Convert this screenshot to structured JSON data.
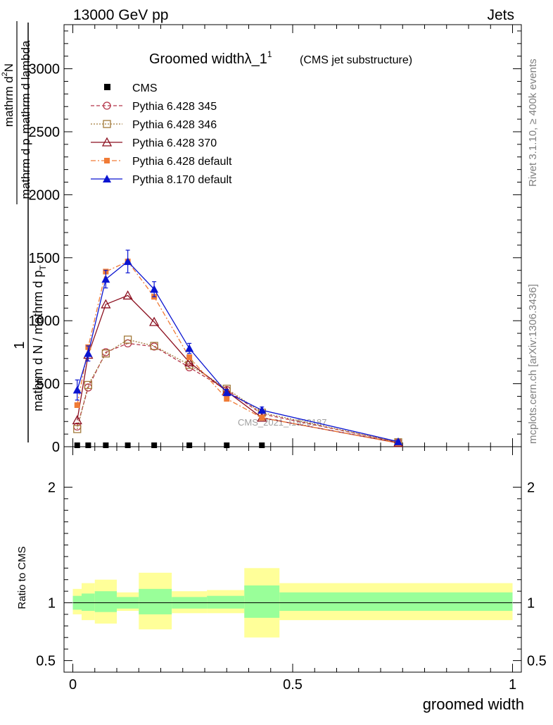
{
  "header": {
    "left": "13000 GeV pp",
    "right": "Jets"
  },
  "side_labels": {
    "rivet": "Rivet 3.1.10, ≥ 400k events",
    "mcplots": "mcplots.cern.ch [arXiv:1306.3436]"
  },
  "watermark": "CMS_2021_I1920187",
  "chart_data": {
    "type": "line",
    "title": {
      "main": "Groomed width",
      "lambda": "λ_1",
      "sup": "1",
      "sub": "(CMS jet substructure)"
    },
    "main_ylabel": {
      "numerator": "1",
      "denominator": "mathrm d N / mathrm d p",
      "denominator_sub": "T",
      "top_numerator": "mathrm d",
      "top_numerator_sup": "2",
      "top_numerator_end": "N",
      "top_denominator": "mathrm d p",
      "top_denominator_sub": "T",
      "top_denominator_end": "mathrm d lambda"
    },
    "xlabel": "groomed width",
    "ratio_ylabel": "Ratio to CMS",
    "xlim": [
      -0.02,
      1.02
    ],
    "ylim": [
      0,
      3350
    ],
    "ratio_ylim": [
      0.4,
      2.35
    ],
    "x_ticks": [
      0,
      0.5,
      1
    ],
    "x_tick_labels": [
      "0",
      "0.5",
      "1"
    ],
    "y_ticks": [
      0,
      500,
      1000,
      1500,
      2000,
      2500,
      3000
    ],
    "y_tick_labels": [
      "0",
      "500",
      "1000",
      "1500",
      "2000",
      "2500",
      "3000"
    ],
    "ratio_ticks": [
      0.5,
      1,
      2
    ],
    "ratio_tick_labels": [
      "0.5",
      "1",
      "2"
    ],
    "cms": {
      "name": "CMS",
      "x": [
        0.01,
        0.035,
        0.075,
        0.125,
        0.185,
        0.265,
        0.35,
        0.43
      ],
      "values": [
        0,
        0,
        0,
        0,
        0,
        0,
        0,
        0
      ]
    },
    "series": [
      {
        "name": "Pythia 6.428 345",
        "color": "#b5364a",
        "marker": "circle-open",
        "dash": "5,3",
        "x": [
          0.01,
          0.035,
          0.075,
          0.125,
          0.185,
          0.265,
          0.35,
          0.43,
          0.74
        ],
        "values": [
          160,
          470,
          750,
          820,
          795,
          630,
          450,
          260,
          35
        ]
      },
      {
        "name": "Pythia 6.428 346",
        "color": "#a27a3a",
        "marker": "square-open",
        "dash": "2,2",
        "x": [
          0.01,
          0.035,
          0.075,
          0.125,
          0.185,
          0.265,
          0.35,
          0.43,
          0.74
        ],
        "values": [
          140,
          490,
          740,
          850,
          800,
          650,
          460,
          270,
          35
        ]
      },
      {
        "name": "Pythia 6.428 370",
        "color": "#8b0e1e",
        "marker": "triangle-open",
        "dash": "",
        "x": [
          0.01,
          0.035,
          0.075,
          0.125,
          0.185,
          0.265,
          0.35,
          0.43,
          0.74
        ],
        "values": [
          210,
          730,
          1130,
          1200,
          990,
          670,
          440,
          230,
          30
        ]
      },
      {
        "name": "Pythia 6.428 default",
        "color": "#f07b36",
        "marker": "square-filled",
        "dash": "7,3,2,3",
        "x": [
          0.01,
          0.035,
          0.075,
          0.125,
          0.185,
          0.265,
          0.35,
          0.43,
          0.74
        ],
        "values": [
          330,
          790,
          1390,
          1470,
          1190,
          710,
          380,
          230,
          28
        ]
      },
      {
        "name": "Pythia 8.170 default",
        "color": "#0a14d0",
        "marker": "triangle-filled",
        "dash": "",
        "x": [
          0.01,
          0.035,
          0.075,
          0.125,
          0.185,
          0.265,
          0.35,
          0.43,
          0.74
        ],
        "values": [
          450,
          740,
          1330,
          1470,
          1250,
          780,
          430,
          290,
          40
        ],
        "errors": [
          80,
          60,
          70,
          90,
          60,
          40,
          25,
          25,
          10
        ]
      }
    ],
    "ratio_bands": {
      "bins": [
        [
          0,
          0.02
        ],
        [
          0.02,
          0.05
        ],
        [
          0.05,
          0.1
        ],
        [
          0.1,
          0.15
        ],
        [
          0.15,
          0.225
        ],
        [
          0.225,
          0.305
        ],
        [
          0.305,
          0.39
        ],
        [
          0.39,
          0.47
        ],
        [
          0.47,
          1.0
        ]
      ],
      "inner_lo": [
        0.94,
        0.93,
        0.92,
        0.95,
        0.9,
        0.95,
        0.95,
        0.87,
        0.93
      ],
      "inner_hi": [
        1.06,
        1.08,
        1.1,
        1.05,
        1.12,
        1.05,
        1.06,
        1.15,
        1.09
      ],
      "outer_lo": [
        0.9,
        0.85,
        0.82,
        0.93,
        0.77,
        0.91,
        0.91,
        0.7,
        0.85
      ],
      "outer_hi": [
        1.12,
        1.17,
        1.2,
        1.09,
        1.26,
        1.1,
        1.11,
        1.3,
        1.17
      ],
      "inner_color": "#99ff99",
      "outer_color": "#ffff99"
    }
  }
}
